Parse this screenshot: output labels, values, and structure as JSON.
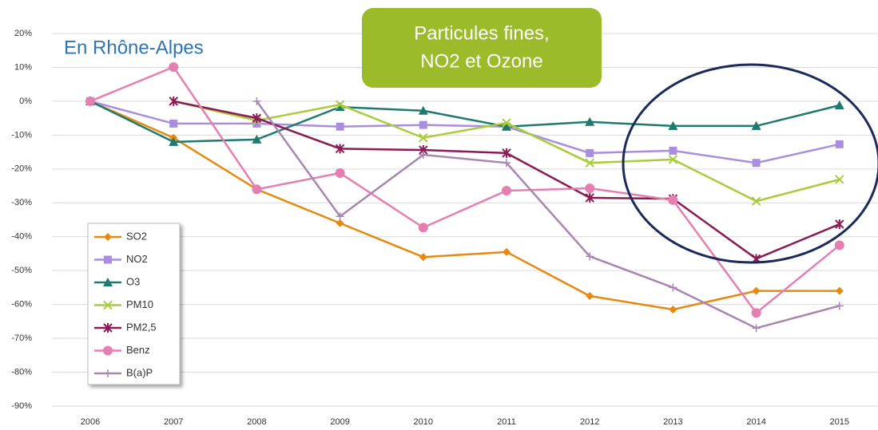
{
  "chart_data": {
    "type": "line",
    "title": [
      "Particules fines,",
      "NO2 et Ozone"
    ],
    "subtitle": "En Rhône-Alpes",
    "categories": [
      "2006",
      "2007",
      "2008",
      "2009",
      "2010",
      "2011",
      "2012",
      "2013",
      "2014",
      "2015"
    ],
    "ylim": [
      -90,
      20
    ],
    "yticks": [
      {
        "value": 20,
        "label": "20%"
      },
      {
        "value": 10,
        "label": "10%"
      },
      {
        "value": 0,
        "label": "0%"
      },
      {
        "value": -10,
        "label": "-10%"
      },
      {
        "value": -20,
        "label": "-20%"
      },
      {
        "value": -30,
        "label": "-30%"
      },
      {
        "value": -40,
        "label": "-40%"
      },
      {
        "value": -50,
        "label": "-50%"
      },
      {
        "value": -60,
        "label": "-60%"
      },
      {
        "value": -70,
        "label": "-70%"
      },
      {
        "value": -80,
        "label": "-80%"
      },
      {
        "value": -90,
        "label": "-90%"
      }
    ],
    "grid": true,
    "legend": "lower-left",
    "series": [
      {
        "name": "SO2",
        "color": "#e8880e",
        "marker": "diamond",
        "values": [
          0,
          -10.8,
          -26,
          -36,
          -46,
          -44.5,
          -57.5,
          -61.5,
          -56,
          -56
        ]
      },
      {
        "name": "NO2",
        "color": "#a98ee0",
        "marker": "square",
        "values": [
          0,
          -6.6,
          -6.6,
          -7.5,
          -7,
          -7.5,
          -15.3,
          -14.6,
          -18.2,
          -12.7
        ]
      },
      {
        "name": "O3",
        "color": "#1f7a6e",
        "marker": "triangle",
        "values": [
          0,
          -12,
          -11.3,
          -1.7,
          -2.8,
          -7.5,
          -6.1,
          -7.3,
          -7.3,
          -1.2
        ]
      },
      {
        "name": "PM10",
        "color": "#a8cc3a",
        "marker": "x",
        "values": [
          null,
          0,
          -5.7,
          -1,
          -10.8,
          -6.4,
          -18.2,
          -17.2,
          -29.5,
          -23.1
        ]
      },
      {
        "name": "PM2,5",
        "color": "#8b1a55",
        "marker": "star",
        "values": [
          null,
          0,
          -5,
          -14,
          -14.4,
          -15.3,
          -28.5,
          -28.8,
          -46.5,
          -36.3
        ]
      },
      {
        "name": "Benz",
        "color": "#e57fb0",
        "marker": "circle",
        "values": [
          0,
          10.1,
          -26,
          -21.2,
          -37.3,
          -26.4,
          -25.7,
          -29.2,
          -62.5,
          -42.5
        ]
      },
      {
        "name": "B(a)P",
        "color": "#a886b0",
        "marker": "plus",
        "values": [
          null,
          null,
          0,
          -34,
          -15.8,
          -18.2,
          -45.8,
          -55,
          -67,
          -60.4
        ]
      }
    ]
  }
}
